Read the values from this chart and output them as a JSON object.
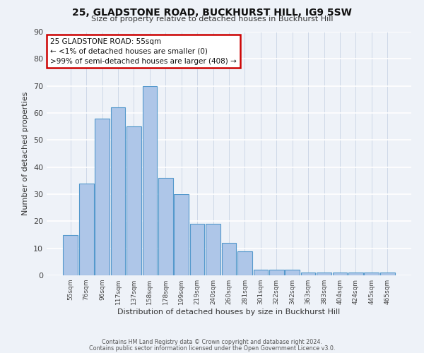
{
  "title": "25, GLADSTONE ROAD, BUCKHURST HILL, IG9 5SW",
  "subtitle": "Size of property relative to detached houses in Buckhurst Hill",
  "xlabel": "Distribution of detached houses by size in Buckhurst Hill",
  "ylabel": "Number of detached properties",
  "bin_labels": [
    "55sqm",
    "76sqm",
    "96sqm",
    "117sqm",
    "137sqm",
    "158sqm",
    "178sqm",
    "199sqm",
    "219sqm",
    "240sqm",
    "260sqm",
    "281sqm",
    "301sqm",
    "322sqm",
    "342sqm",
    "363sqm",
    "383sqm",
    "404sqm",
    "424sqm",
    "445sqm",
    "465sqm"
  ],
  "bar_values": [
    15,
    34,
    58,
    62,
    55,
    70,
    36,
    30,
    19,
    19,
    12,
    9,
    2,
    2,
    2,
    1,
    1,
    1,
    1,
    1,
    1
  ],
  "bar_color": "#aec6e8",
  "bar_edge_color": "#5599cc",
  "annotation_box_text": "25 GLADSTONE ROAD: 55sqm\n← <1% of detached houses are smaller (0)\n>99% of semi-detached houses are larger (408) →",
  "annotation_box_color": "#ffffff",
  "annotation_box_edge_color": "#cc0000",
  "background_color": "#eef2f8",
  "grid_color": "#d0d8e8",
  "ylim": [
    0,
    90
  ],
  "yticks": [
    0,
    10,
    20,
    30,
    40,
    50,
    60,
    70,
    80,
    90
  ],
  "footer_line1": "Contains HM Land Registry data © Crown copyright and database right 2024.",
  "footer_line2": "Contains public sector information licensed under the Open Government Licence v3.0."
}
